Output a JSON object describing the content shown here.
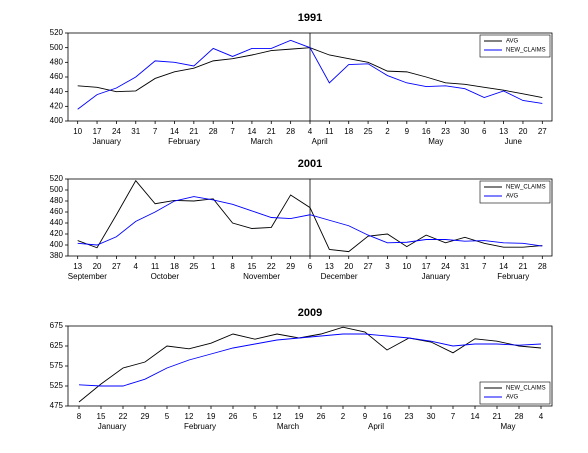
{
  "chart_data": [
    {
      "type": "line",
      "title": "1991",
      "categories": [
        "10",
        "17",
        "24",
        "31",
        "7",
        "14",
        "21",
        "28",
        "7",
        "14",
        "21",
        "28",
        "4",
        "11",
        "18",
        "25",
        "2",
        "9",
        "16",
        "23",
        "30",
        "6",
        "13",
        "20",
        "27"
      ],
      "months": [
        null,
        "January",
        null,
        null,
        null,
        "February",
        null,
        null,
        null,
        "March",
        null,
        null,
        "April",
        null,
        null,
        null,
        null,
        null,
        "May",
        null,
        null,
        null,
        "June",
        null,
        null
      ],
      "series": [
        {
          "name": "AVG",
          "color": "#000000",
          "values": [
            448,
            446,
            440,
            441,
            458,
            467,
            472,
            482,
            485,
            490,
            496,
            498,
            500,
            490,
            485,
            480,
            468,
            467,
            460,
            452,
            450,
            446,
            442,
            437,
            432
          ]
        },
        {
          "name": "NEW_CLAIMS",
          "color": "#0000ff",
          "values": [
            416,
            436,
            445,
            460,
            482,
            480,
            475,
            499,
            488,
            499,
            499,
            510,
            500,
            452,
            477,
            478,
            462,
            452,
            447,
            448,
            444,
            432,
            441,
            428,
            424
          ]
        }
      ],
      "ylim": [
        400,
        520
      ],
      "yticks": [
        400,
        420,
        440,
        460,
        480,
        500,
        520
      ],
      "vline": 12,
      "legend": "upper right"
    },
    {
      "type": "line",
      "title": "2001",
      "categories": [
        "13",
        "20",
        "27",
        "4",
        "11",
        "18",
        "25",
        "1",
        "8",
        "15",
        "22",
        "29",
        "6",
        "13",
        "20",
        "27",
        "3",
        "10",
        "17",
        "24",
        "31",
        "7",
        "14",
        "21",
        "28"
      ],
      "months": [
        "September",
        null,
        null,
        null,
        "October",
        null,
        null,
        null,
        null,
        "November",
        null,
        null,
        null,
        "December",
        null,
        null,
        null,
        null,
        "January",
        null,
        null,
        null,
        "February",
        null,
        null
      ],
      "series": [
        {
          "name": "NEW_CLAIMS",
          "color": "#000000",
          "values": [
            408,
            395,
            455,
            517,
            475,
            481,
            480,
            484,
            440,
            430,
            432,
            491,
            468,
            392,
            388,
            416,
            420,
            397,
            418,
            404,
            414,
            403,
            396,
            396,
            399
          ]
        },
        {
          "name": "AVG",
          "color": "#0000ff",
          "values": [
            403,
            400,
            415,
            443,
            460,
            480,
            488,
            482,
            474,
            462,
            450,
            448,
            455,
            445,
            435,
            418,
            404,
            405,
            410,
            410,
            407,
            408,
            404,
            403,
            398
          ]
        }
      ],
      "ylim": [
        380,
        520
      ],
      "yticks": [
        380,
        400,
        420,
        440,
        460,
        480,
        500,
        520
      ],
      "vline": 12,
      "legend": "upper right"
    },
    {
      "type": "line",
      "title": "2009",
      "categories": [
        "8",
        "15",
        "22",
        "29",
        "5",
        "12",
        "19",
        "26",
        "5",
        "12",
        "19",
        "26",
        "2",
        "9",
        "16",
        "23",
        "30",
        "7",
        "14",
        "21",
        "28",
        "4"
      ],
      "months": [
        null,
        "January",
        null,
        null,
        null,
        "February",
        null,
        null,
        null,
        "March",
        null,
        null,
        null,
        "April",
        null,
        null,
        null,
        null,
        null,
        "May",
        null,
        null
      ],
      "series": [
        {
          "name": "NEW_CLAIMS",
          "color": "#000000",
          "values": [
            485,
            530,
            570,
            585,
            625,
            618,
            632,
            655,
            642,
            655,
            645,
            655,
            672,
            660,
            615,
            645,
            635,
            608,
            643,
            637,
            625,
            620
          ]
        },
        {
          "name": "AVG",
          "color": "#0000ff",
          "values": [
            528,
            525,
            525,
            542,
            570,
            590,
            605,
            620,
            630,
            640,
            645,
            650,
            655,
            655,
            650,
            645,
            637,
            625,
            630,
            630,
            627,
            630
          ]
        }
      ],
      "ylim": [
        475,
        675
      ],
      "yticks": [
        475,
        525,
        575,
        625,
        675
      ],
      "legend": "lower right"
    }
  ]
}
